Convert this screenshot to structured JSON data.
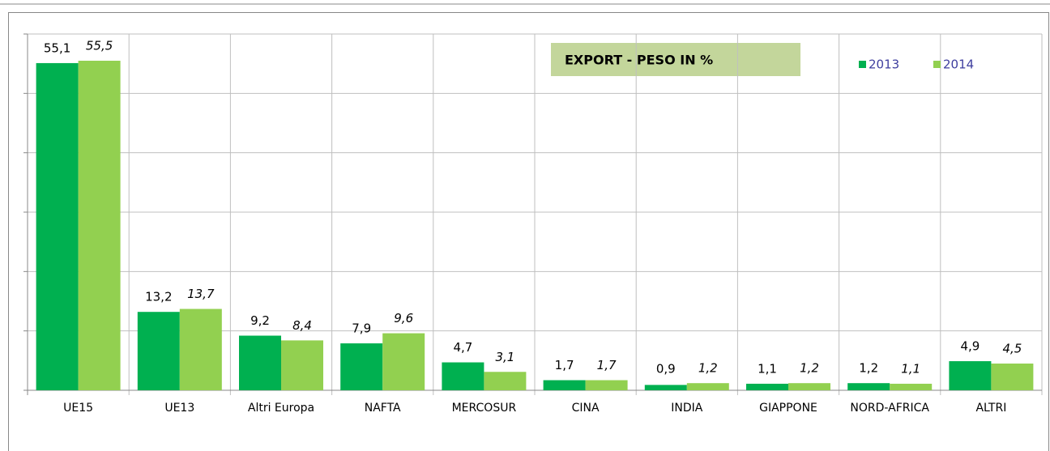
{
  "chart_data": {
    "type": "bar",
    "title": "EXPORT - PESO IN %",
    "categories": [
      "UE15",
      "UE13",
      "Altri Europa",
      "NAFTA",
      "MERCOSUR",
      "CINA",
      "INDIA",
      "GIAPPONE",
      "NORD-AFRICA",
      "ALTRI"
    ],
    "series": [
      {
        "name": "2013",
        "color": "#00b050",
        "values": [
          55.1,
          13.2,
          9.2,
          7.9,
          4.7,
          1.7,
          0.9,
          1.1,
          1.2,
          4.9
        ],
        "value_labels": [
          "55,1",
          "13,2",
          "9,2",
          "7,9",
          "4,7",
          "1,7",
          "0,9",
          "1,1",
          "1,2",
          "4,9"
        ]
      },
      {
        "name": "2014",
        "color": "#92d050",
        "values": [
          55.5,
          13.7,
          8.4,
          9.6,
          3.1,
          1.7,
          1.2,
          1.2,
          1.1,
          4.5
        ],
        "value_labels": [
          "55,5",
          "13,7",
          "8,4",
          "9,6",
          "3,1",
          "1,7",
          "1,2",
          "1,2",
          "1,1",
          "4,5"
        ]
      }
    ],
    "ylim": [
      0,
      60
    ],
    "yticks": [
      0,
      10,
      20,
      30,
      40,
      50,
      60
    ],
    "grid": true
  }
}
